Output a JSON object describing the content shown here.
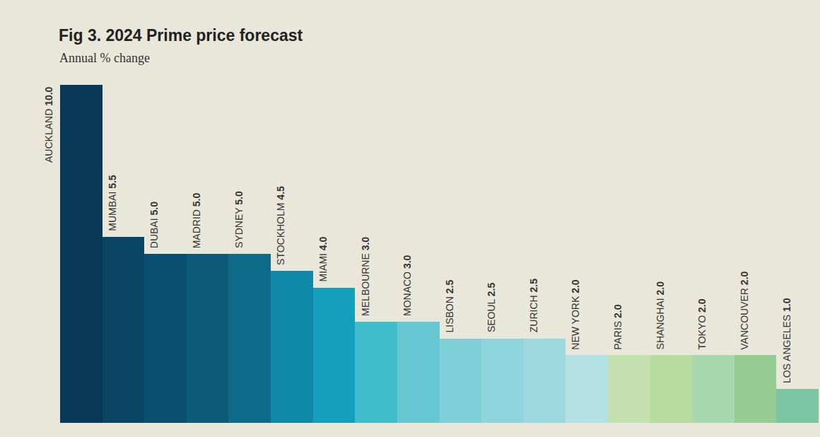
{
  "chart_data": {
    "type": "bar",
    "title": "Fig 3. 2024 Prime price forecast",
    "subtitle": "Annual % change",
    "categories": [
      "AUCKLAND",
      "MUMBAI",
      "DUBAI",
      "MADRID",
      "SYDNEY",
      "STOCKHOLM",
      "MIAMI",
      "MELBOURNE",
      "MONACO",
      "LISBON",
      "SEOUL",
      "ZURICH",
      "NEW YORK",
      "PARIS",
      "SHANGHAI",
      "TOKYO",
      "VANCOUVER",
      "LOS ANGELES"
    ],
    "values": [
      10.0,
      5.5,
      5.0,
      5.0,
      5.0,
      4.5,
      4.0,
      3.0,
      3.0,
      2.5,
      2.5,
      2.5,
      2.0,
      2.0,
      2.0,
      2.0,
      2.0,
      1.0
    ],
    "value_labels": [
      "10.0",
      "5.5",
      "5.0",
      "5.0",
      "5.0",
      "4.5",
      "4.0",
      "3.0",
      "3.0",
      "2.5",
      "2.5",
      "2.5",
      "2.0",
      "2.0",
      "2.0",
      "2.0",
      "2.0",
      "1.0"
    ],
    "colors": [
      "#083a58",
      "#0a4565",
      "#0b4f70",
      "#0c5a7a",
      "#0e6a88",
      "#1088a8",
      "#14a0bc",
      "#40bccc",
      "#66c6d2",
      "#7fcfd8",
      "#8ed4dc",
      "#9ed9e0",
      "#b4e1e6",
      "#c4e0b0",
      "#b8dca0",
      "#a8d8ac",
      "#94cc94",
      "#7cc4a4"
    ],
    "ylim": [
      0,
      10
    ],
    "data_labels": true,
    "tick_labels": false,
    "grid": false
  }
}
